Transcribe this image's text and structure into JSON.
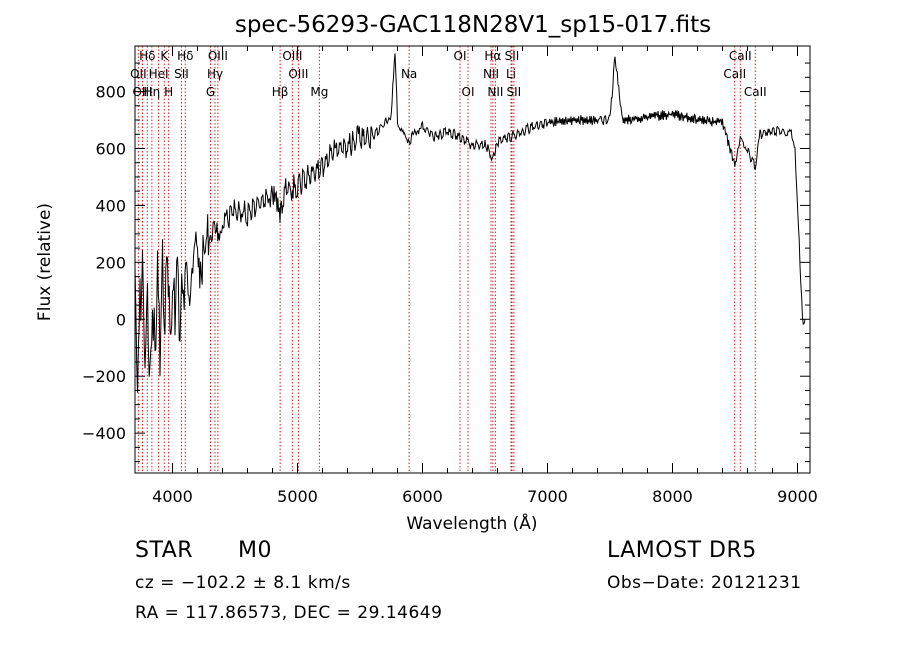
{
  "chart_data": {
    "type": "line",
    "title": "spec-56293-GAC118N28V1_sp15-017.fits",
    "xlabel": "Wavelength (Å)",
    "ylabel": "Flux (relative)",
    "xlim": [
      3700,
      9100
    ],
    "ylim": [
      -540,
      960
    ],
    "xticks": [
      4000,
      5000,
      6000,
      7000,
      8000,
      9000
    ],
    "yticks": [
      -400,
      -200,
      0,
      200,
      400,
      600,
      800
    ],
    "grid": false,
    "series": [
      {
        "x": [
          3700,
          3720,
          3740,
          3760,
          3780,
          3800,
          3820,
          3840,
          3860,
          3880,
          3900,
          3920,
          3940,
          3960,
          3980,
          4000,
          4020,
          4040,
          4060,
          4080,
          4100,
          4150,
          4200,
          4250,
          4300,
          4350,
          4400,
          4500,
          4600,
          4700,
          4800,
          4860,
          4900,
          5000,
          5100,
          5200,
          5300,
          5400,
          5500,
          5600,
          5700,
          5750,
          5780,
          5800,
          5850,
          5900,
          5950,
          6000,
          6100,
          6200,
          6300,
          6400,
          6500,
          6563,
          6600,
          6700,
          6800,
          6900,
          7000,
          7200,
          7400,
          7500,
          7540,
          7600,
          7800,
          8000,
          8200,
          8400,
          8498,
          8542,
          8600,
          8662,
          8700,
          8800,
          8900,
          8950,
          8980,
          9000,
          9020,
          9040,
          9060
        ],
        "values": [
          100,
          -200,
          40,
          180,
          -150,
          120,
          -220,
          60,
          -120,
          150,
          -100,
          180,
          0,
          220,
          -80,
          120,
          40,
          200,
          -50,
          180,
          80,
          180,
          240,
          180,
          320,
          300,
          340,
          380,
          370,
          420,
          440,
          380,
          450,
          470,
          510,
          540,
          600,
          610,
          640,
          640,
          690,
          720,
          940,
          700,
          640,
          630,
          660,
          680,
          640,
          660,
          640,
          610,
          620,
          560,
          620,
          640,
          660,
          680,
          690,
          700,
          700,
          700,
          920,
          700,
          710,
          720,
          700,
          690,
          540,
          650,
          590,
          540,
          650,
          660,
          660,
          650,
          600,
          400,
          200,
          0,
          0
        ]
      }
    ],
    "lines": [
      {
        "name": "Hδ",
        "x": 3798,
        "row": 0
      },
      {
        "name": "OII",
        "x": 3727,
        "row": 1
      },
      {
        "name": "OIII",
        "x": 3760,
        "row": 2
      },
      {
        "name": "Hη",
        "x": 3835,
        "row": 2
      },
      {
        "name": "K",
        "x": 3934,
        "row": 0
      },
      {
        "name": "HeI",
        "x": 3889,
        "row": 1
      },
      {
        "name": "H",
        "x": 3969,
        "row": 2
      },
      {
        "name": "Hδ",
        "x": 4102,
        "row": 0
      },
      {
        "name": "SII",
        "x": 4072,
        "row": 1
      },
      {
        "name": "OIII",
        "x": 4363,
        "row": 0
      },
      {
        "name": "Hγ",
        "x": 4340,
        "row": 1
      },
      {
        "name": "G",
        "x": 4304,
        "row": 2
      },
      {
        "name": "OIII",
        "x": 4959,
        "row": 0
      },
      {
        "name": "OIII",
        "x": 5007,
        "row": 1
      },
      {
        "name": "Hβ",
        "x": 4861,
        "row": 2
      },
      {
        "name": "Mg",
        "x": 5175,
        "row": 2
      },
      {
        "name": "Na",
        "x": 5893,
        "row": 1
      },
      {
        "name": "OI",
        "x": 6300,
        "row": 0
      },
      {
        "name": "OI",
        "x": 6364,
        "row": 2
      },
      {
        "name": "Hα",
        "x": 6563,
        "row": 0
      },
      {
        "name": "NII",
        "x": 6548,
        "row": 1
      },
      {
        "name": "NII",
        "x": 6583,
        "row": 2
      },
      {
        "name": "SII",
        "x": 6716,
        "row": 0
      },
      {
        "name": "Li",
        "x": 6708,
        "row": 1
      },
      {
        "name": "SII",
        "x": 6731,
        "row": 2
      },
      {
        "name": "CaII",
        "x": 8542,
        "row": 0
      },
      {
        "name": "CaII",
        "x": 8498,
        "row": 1
      },
      {
        "name": "CaII",
        "x": 8662,
        "row": 2
      }
    ]
  },
  "footer": {
    "object_class": "STAR",
    "subclass": "M0",
    "survey": "LAMOST DR5",
    "velocity": "cz = −102.2 ± 8.1 km/s",
    "obs_date": "Obs−Date: 20121231",
    "coords": "RA = 117.86573, DEC =  29.14649"
  },
  "colors": {
    "line_marker": "#cc2222",
    "spectrum": "#000000"
  }
}
